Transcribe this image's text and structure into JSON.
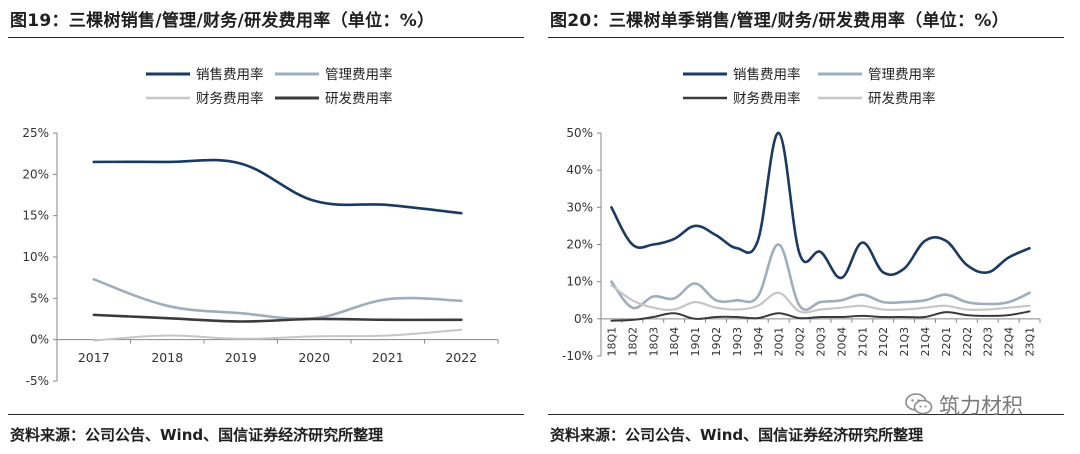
{
  "left": {
    "title": "图19：三棵树销售/管理/财务/研发费用率（单位：%）",
    "source": "资料来源：公司公告、Wind、国信证券经济研究所整理"
  },
  "right": {
    "title": "图20：三棵树单季销售/管理/财务/研发费用率（单位：%）",
    "source": "资料来源：公司公告、Wind、国信证券经济研究所整理"
  },
  "watermark": {
    "text": "筑力材积",
    "icon": "wechat-icon"
  },
  "chart_data": [
    {
      "type": "line",
      "title": "",
      "xlabel": "",
      "ylabel": "",
      "categories": [
        "2017",
        "2018",
        "2019",
        "2020",
        "2021",
        "2022"
      ],
      "ylim": [
        -5,
        25
      ],
      "yticks": [
        -5,
        0,
        5,
        10,
        15,
        20,
        25
      ],
      "ytick_labels": [
        "-5%",
        "0%",
        "5%",
        "10%",
        "15%",
        "20%",
        "25%"
      ],
      "grid": false,
      "legend_position": "top",
      "series": [
        {
          "name": "销售费用率",
          "color": "#1b3a63",
          "width": 2.6,
          "values": [
            21.5,
            21.5,
            21.3,
            16.8,
            16.3,
            15.3
          ]
        },
        {
          "name": "管理费用率",
          "color": "#9fadbc",
          "width": 2.6,
          "values": [
            7.3,
            4.1,
            3.2,
            2.6,
            4.9,
            4.7
          ]
        },
        {
          "name": "财务费用率",
          "color": "#c6c6c6",
          "width": 2.0,
          "values": [
            -0.1,
            0.5,
            0.1,
            0.4,
            0.5,
            1.2
          ]
        },
        {
          "name": "研发费用率",
          "color": "#3b3b3b",
          "width": 2.6,
          "values": [
            3.0,
            2.6,
            2.2,
            2.5,
            2.4,
            2.4
          ]
        }
      ]
    },
    {
      "type": "line",
      "title": "",
      "xlabel": "",
      "ylabel": "",
      "categories": [
        "18Q1",
        "18Q2",
        "18Q3",
        "18Q4",
        "19Q1",
        "19Q2",
        "19Q3",
        "19Q4",
        "20Q1",
        "20Q2",
        "20Q3",
        "20Q4",
        "21Q1",
        "21Q2",
        "21Q3",
        "21Q4",
        "22Q1",
        "22Q2",
        "22Q3",
        "22Q4",
        "23Q1"
      ],
      "ylim": [
        -10,
        50
      ],
      "yticks": [
        -10,
        0,
        10,
        20,
        30,
        40,
        50
      ],
      "ytick_labels": [
        "-10%",
        "0%",
        "10%",
        "20%",
        "30%",
        "40%",
        "50%"
      ],
      "grid": false,
      "legend_position": "top",
      "series": [
        {
          "name": "销售费用率",
          "color": "#1b3a63",
          "width": 2.6,
          "values": [
            30,
            20,
            20,
            21.5,
            25,
            22.5,
            19,
            21,
            50,
            17.5,
            18,
            11,
            20.5,
            12.5,
            13.5,
            21,
            21,
            14.5,
            12.5,
            16.5,
            19
          ]
        },
        {
          "name": "管理费用率",
          "color": "#9fadbc",
          "width": 2.6,
          "values": [
            10,
            3,
            6,
            5.5,
            9.5,
            5,
            5,
            6,
            20,
            3.5,
            4.5,
            5,
            6.5,
            4.5,
            4.5,
            5,
            6.5,
            4.5,
            4,
            4.5,
            7
          ]
        },
        {
          "name": "财务费用率",
          "color": "#3b3b3b",
          "width": 2.0,
          "values": [
            -0.5,
            -0.3,
            0.5,
            1.5,
            0,
            0.5,
            0.5,
            0.2,
            1.5,
            0.2,
            0.5,
            0.5,
            0.8,
            0.5,
            0.5,
            0.5,
            1.8,
            1.0,
            0.8,
            1.0,
            2.0
          ]
        },
        {
          "name": "研发费用率",
          "color": "#c6c6c6",
          "width": 2.2,
          "values": [
            9,
            5,
            3,
            2.5,
            4.5,
            3,
            2.5,
            3.5,
            7,
            2,
            2.5,
            3,
            3.5,
            2.5,
            2.5,
            3,
            3.5,
            2.5,
            2.5,
            3,
            3.5
          ]
        }
      ]
    }
  ]
}
